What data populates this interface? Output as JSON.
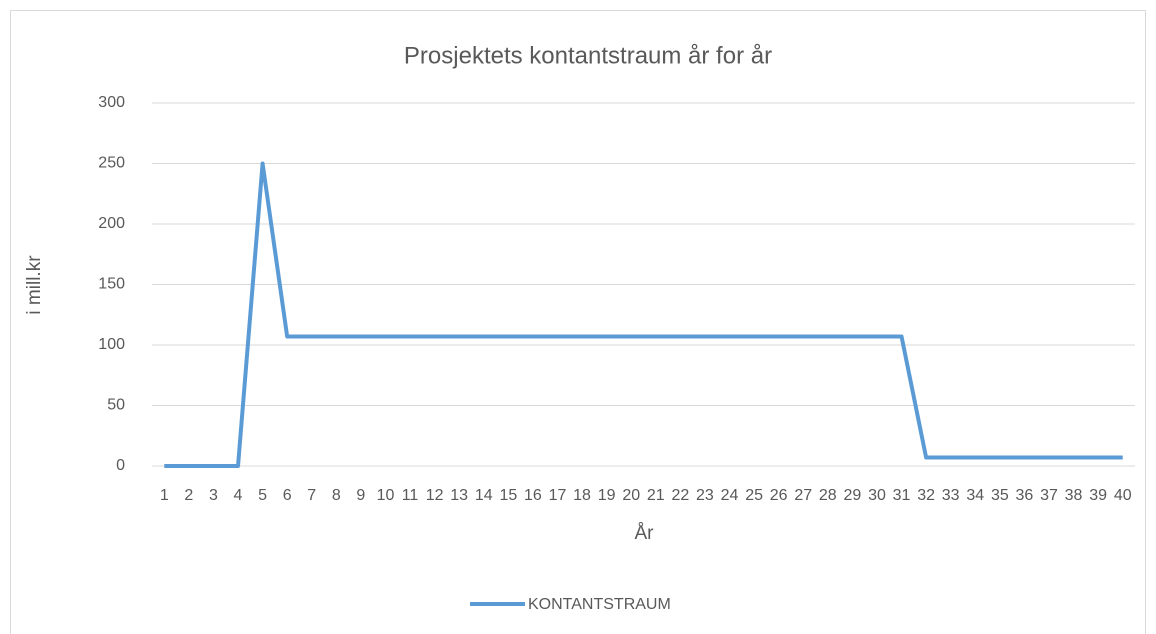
{
  "chart_data": {
    "type": "line",
    "title": "Prosjektets kontantstraum år for år",
    "x_label": "År",
    "y_label": "i mill.kr",
    "categories": [
      1,
      2,
      3,
      4,
      5,
      6,
      7,
      8,
      9,
      10,
      11,
      12,
      13,
      14,
      15,
      16,
      17,
      18,
      19,
      20,
      21,
      22,
      23,
      24,
      25,
      26,
      27,
      28,
      29,
      30,
      31,
      32,
      33,
      34,
      35,
      36,
      37,
      38,
      39,
      40
    ],
    "series": [
      {
        "name": "KONTANTSTRAUM",
        "color": "#5b9bd5",
        "values": [
          0,
          0,
          0,
          0,
          250,
          107,
          107,
          107,
          107,
          107,
          107,
          107,
          107,
          107,
          107,
          107,
          107,
          107,
          107,
          107,
          107,
          107,
          107,
          107,
          107,
          107,
          107,
          107,
          107,
          107,
          107,
          7,
          7,
          7,
          7,
          7,
          7,
          7,
          7,
          7
        ]
      }
    ],
    "ylim": [
      0,
      300
    ],
    "yticks": [
      0,
      50,
      100,
      150,
      200,
      250,
      300
    ],
    "grid": true,
    "legend": "bottom"
  }
}
